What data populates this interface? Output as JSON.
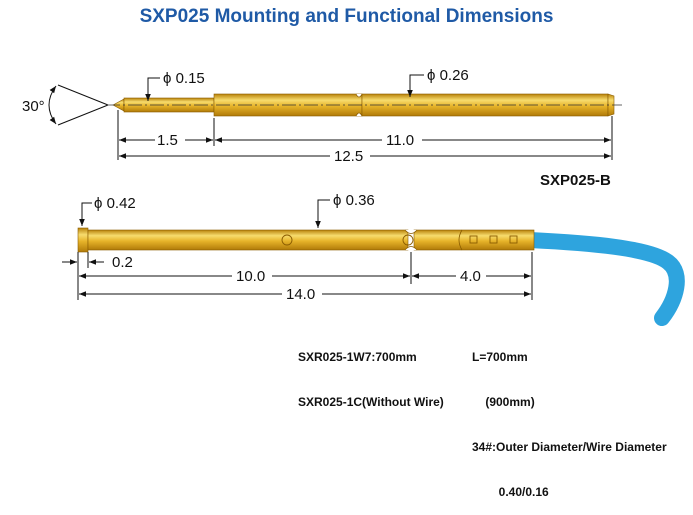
{
  "title": "SXP025 Mounting and Functional Dimensions",
  "colors": {
    "title": "#1f5aa6",
    "probe_body": "#e0ac1c",
    "probe_highlight": "#f7dc6e",
    "wire": "#2ea4de",
    "dimension_lines": "#111111"
  },
  "probe_b": {
    "label": "SXP025-B",
    "angle_label": "30°",
    "tip_diameter": "ϕ 0.15",
    "body_diameter": "ϕ 0.26",
    "dims": [
      "1.5",
      "11.0",
      "12.5"
    ]
  },
  "probe_c": {
    "head_diameter": "ϕ 0.42",
    "body_diameter": "ϕ 0.36",
    "dims": [
      "0.2",
      "10.0",
      "4.0",
      "14.0"
    ]
  },
  "specs": {
    "left": [
      "SXR025-1W7:700mm",
      "SXR025-1C(Without Wire)"
    ],
    "right": [
      "L=700mm",
      "    (900mm)",
      "34#:Outer Diameter/Wire Diameter",
      "        0.40/0.16"
    ]
  }
}
